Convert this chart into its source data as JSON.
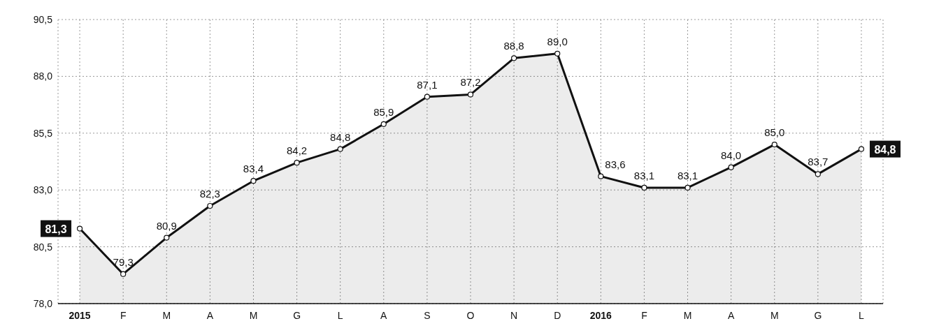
{
  "chart_data": {
    "type": "area",
    "categories": [
      "2015",
      "F",
      "M",
      "A",
      "M",
      "G",
      "L",
      "A",
      "S",
      "O",
      "N",
      "D",
      "2016",
      "F",
      "M",
      "A",
      "M",
      "G",
      "L"
    ],
    "series": [
      {
        "color": "#111111",
        "values": [
          81.3,
          79.3,
          80.9,
          82.3,
          83.4,
          84.2,
          84.8,
          85.9,
          87.1,
          87.2,
          88.8,
          89.0,
          83.6,
          83.1,
          83.1,
          84.0,
          85.0,
          83.7,
          84.8
        ],
        "value_labels": [
          "81,3",
          "79,3",
          "80,9",
          "82,3",
          "83,4",
          "84,2",
          "84,8",
          "85,9",
          "87,1",
          "87,2",
          "88,8",
          "89,0",
          "83,6",
          "83,1",
          "83,1",
          "84,0",
          "85,0",
          "83,7",
          "84,8"
        ]
      }
    ],
    "ylim": [
      78.0,
      90.5
    ],
    "yticks": [
      {
        "value": 78.0,
        "label": "78,0"
      },
      {
        "value": 80.5,
        "label": "80,5"
      },
      {
        "value": 83.0,
        "label": "83,0"
      },
      {
        "value": 85.5,
        "label": "85,5"
      },
      {
        "value": 88.0,
        "label": "88,0"
      },
      {
        "value": 90.5,
        "label": "90,5"
      }
    ],
    "grid": true,
    "marker": "circle",
    "line_style": "solid"
  }
}
